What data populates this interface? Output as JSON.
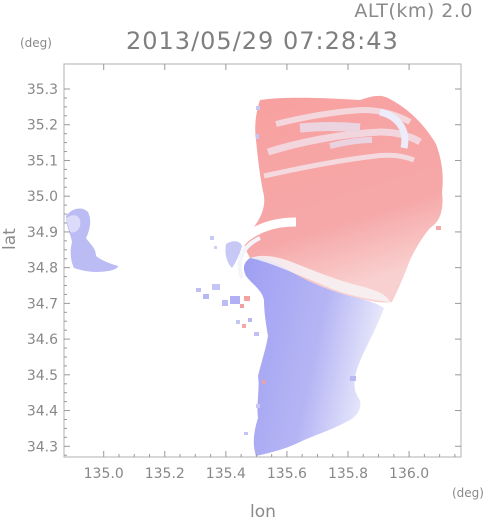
{
  "header": {
    "altitude_label": "ALT(km) 2.0",
    "timestamp": "2013/05/29 07:28:43"
  },
  "axes": {
    "x_unit": "(deg)",
    "y_unit": "(deg)",
    "x_label": "lon",
    "y_label": "lat",
    "x_ticks": [
      "135.0",
      "135.2",
      "135.4",
      "135.6",
      "135.8",
      "136.0"
    ],
    "y_ticks": [
      "35.3",
      "35.2",
      "35.1",
      "35.0",
      "34.9",
      "34.8",
      "34.7",
      "34.6",
      "34.5",
      "34.4",
      "34.3"
    ]
  },
  "map": {
    "lon_range": [
      134.87,
      136.17
    ],
    "lat_range": [
      34.27,
      35.37
    ],
    "colors": {
      "approaching": "#a8a8f8",
      "receding": "#f6a3a3",
      "near_zero": "#f4f4fb",
      "frame": "#b0b0b0"
    }
  }
}
